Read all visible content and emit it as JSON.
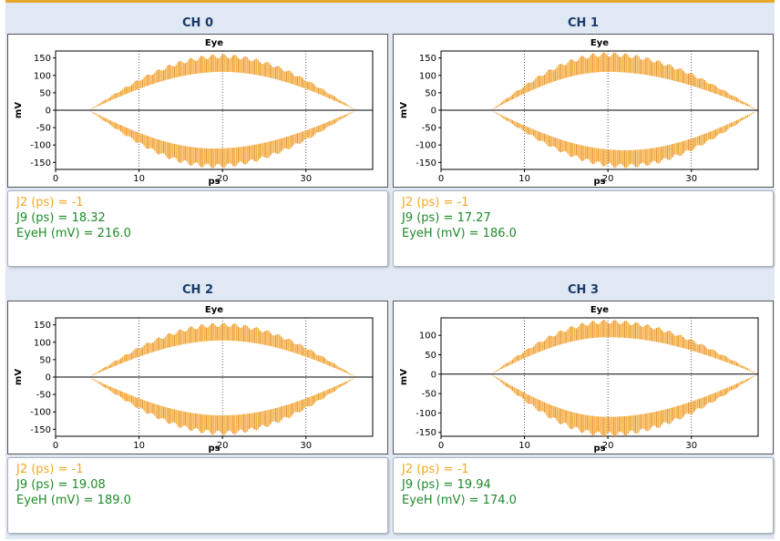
{
  "colors": {
    "frame_accent": "#e8a92a",
    "background": "#dfe8f3",
    "eye_trace": "#f5a623",
    "eye_trace_dark": "#e8861c",
    "j2_text": "#f5a623",
    "j9_text": "#1f8a2a",
    "title_text": "#1a3a6b"
  },
  "channels": [
    {
      "title": "CH 0",
      "metrics": {
        "j2": "J2 (ps) = -1",
        "j9": "J9 (ps) = 18.32",
        "eyeh": "EyeH (mV) = 216.0"
      }
    },
    {
      "title": "CH 1",
      "metrics": {
        "j2": "J2 (ps) = -1",
        "j9": "J9 (ps) = 17.27",
        "eyeh": "EyeH (mV) = 186.0"
      }
    },
    {
      "title": "CH 2",
      "metrics": {
        "j2": "J2 (ps) = -1",
        "j9": "J9 (ps) = 19.08",
        "eyeh": "EyeH (mV) = 189.0"
      }
    },
    {
      "title": "CH 3",
      "metrics": {
        "j2": "J2 (ps) = -1",
        "j9": "J9 (ps) = 19.94",
        "eyeh": "EyeH (mV) = 174.0"
      }
    }
  ],
  "chart_data": [
    {
      "type": "scatter",
      "title": "Eye",
      "xlabel": "ps",
      "ylabel": "mV",
      "xlim": [
        0,
        38
      ],
      "ylim": [
        -170,
        170
      ],
      "xticks": [
        "0",
        "10",
        "20",
        "30"
      ],
      "yticks": [
        "150",
        "100",
        "50",
        "0",
        "-50",
        "-100",
        "-150"
      ],
      "vgrid_x": [
        10,
        20,
        30
      ],
      "zero_line": 0,
      "eye": {
        "x_start": 4,
        "x_end": 36,
        "x_peak_top": 20,
        "x_peak_bottom": 19,
        "top_outer": 155,
        "top_inner": 110,
        "bottom_outer": -160,
        "bottom_inner": -110
      }
    },
    {
      "type": "scatter",
      "title": "Eye",
      "xlabel": "ps",
      "ylabel": "mV",
      "xlim": [
        0,
        38
      ],
      "ylim": [
        -170,
        170
      ],
      "xticks": [
        "0",
        "10",
        "20",
        "30"
      ],
      "yticks": [
        "150",
        "100",
        "50",
        "0",
        "-50",
        "-100",
        "-150"
      ],
      "vgrid_x": [
        10,
        20,
        30
      ],
      "zero_line": 0,
      "eye": {
        "x_start": 6,
        "x_end": 38,
        "x_peak_top": 20,
        "x_peak_bottom": 22,
        "top_outer": 160,
        "top_inner": 110,
        "bottom_outer": -160,
        "bottom_inner": -115
      }
    },
    {
      "type": "scatter",
      "title": "Eye",
      "xlabel": "ps",
      "ylabel": "mV",
      "xlim": [
        0,
        38
      ],
      "ylim": [
        -170,
        170
      ],
      "xticks": [
        "0",
        "10",
        "20",
        "30"
      ],
      "yticks": [
        "150",
        "100",
        "50",
        "0",
        "-50",
        "-100",
        "-150"
      ],
      "vgrid_x": [
        10,
        20,
        30
      ],
      "zero_line": 0,
      "eye": {
        "x_start": 4,
        "x_end": 36,
        "x_peak_top": 20,
        "x_peak_bottom": 20,
        "top_outer": 150,
        "top_inner": 105,
        "bottom_outer": -160,
        "bottom_inner": -110
      }
    },
    {
      "type": "scatter",
      "title": "Eye",
      "xlabel": "ps",
      "ylabel": "mV",
      "xlim": [
        0,
        38
      ],
      "ylim": [
        -160,
        145
      ],
      "xticks": [
        "0",
        "10",
        "20",
        "30"
      ],
      "yticks": [
        "100",
        "50",
        "0",
        "-50",
        "-100",
        "-150"
      ],
      "vgrid_x": [
        10,
        20,
        30
      ],
      "zero_line": 0,
      "eye": {
        "x_start": 6,
        "x_end": 38,
        "x_peak_top": 20,
        "x_peak_bottom": 20,
        "top_outer": 135,
        "top_inner": 95,
        "bottom_outer": -155,
        "bottom_inner": -110
      }
    }
  ]
}
